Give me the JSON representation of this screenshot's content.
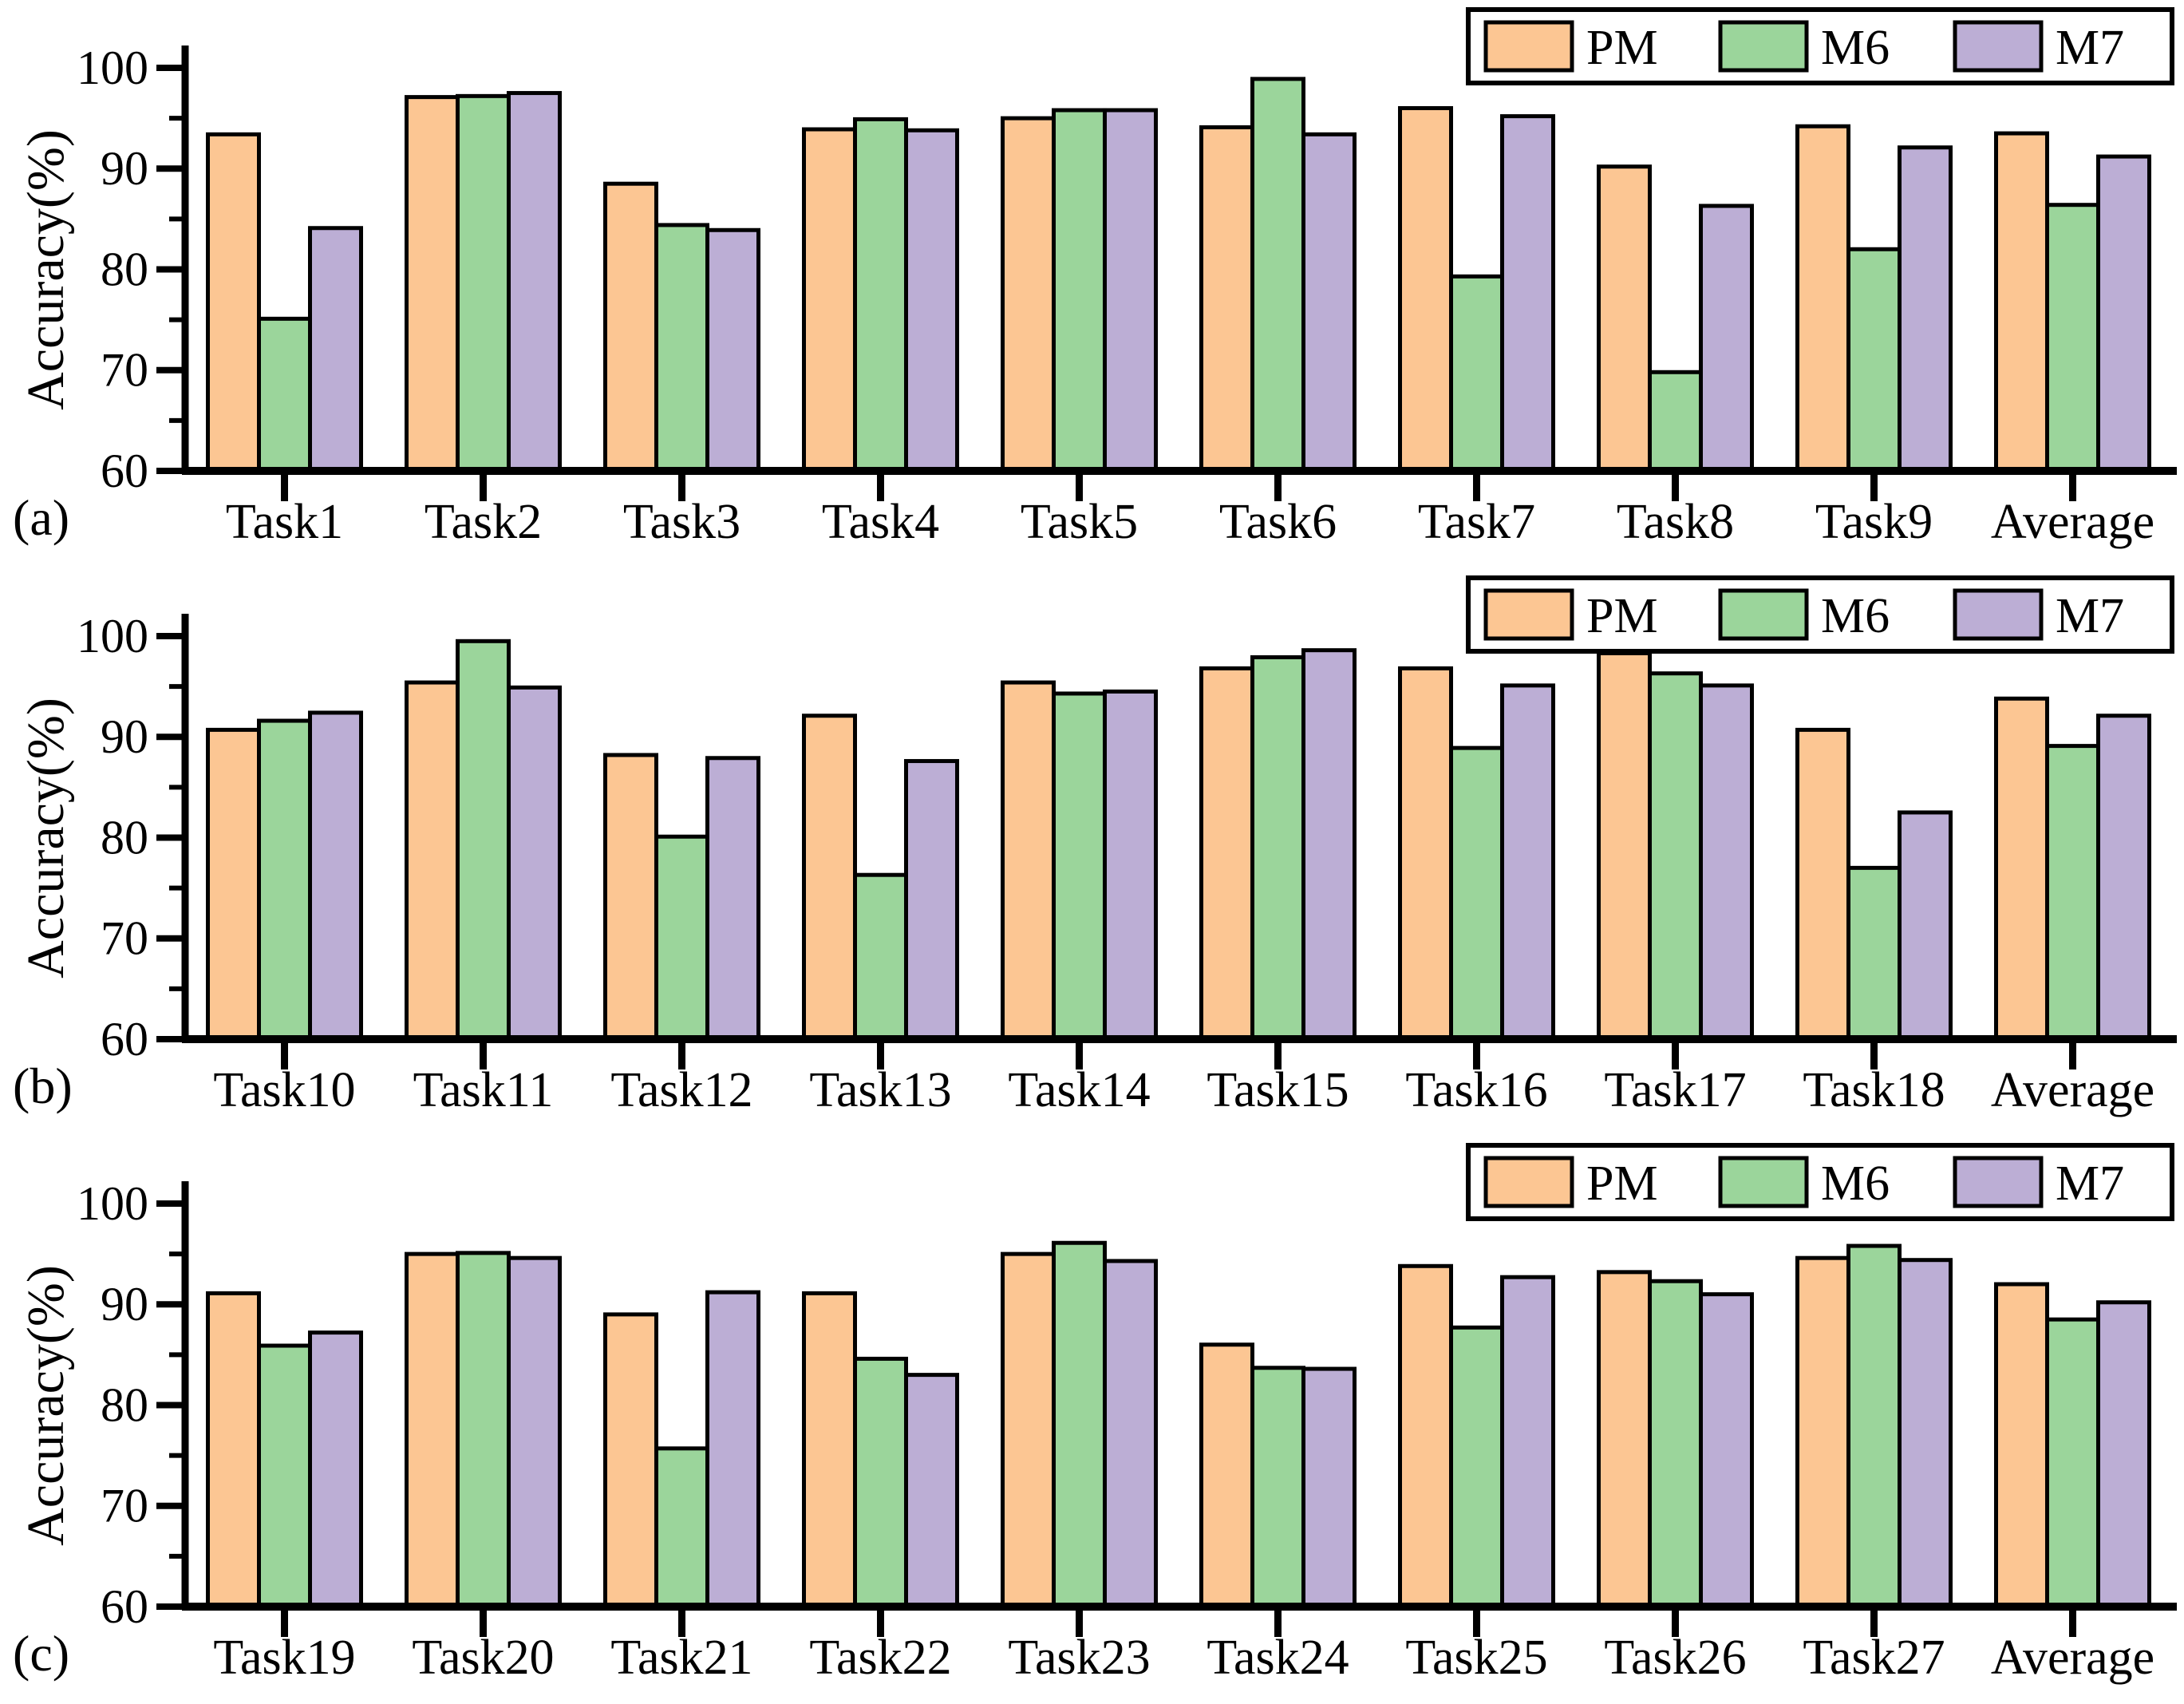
{
  "figure": {
    "background": "#ffffff",
    "edge_color": "#000000",
    "font_note": "serif axis figure",
    "legend_labels": [
      "PM",
      "M6",
      "M7"
    ],
    "series_colors": {
      "PM": "#FCC693",
      "M6": "#9BD59B",
      "M7": "#BCAED5"
    }
  },
  "chart_data": [
    {
      "type": "bar",
      "panel_label": "(a)",
      "ylabel": "Accuracy(%)",
      "ylim": [
        60,
        100
      ],
      "yticks": [
        60,
        70,
        80,
        90,
        100
      ],
      "minor_yticks": [
        65,
        75,
        85,
        95
      ],
      "grid": false,
      "legend_position": "top-right",
      "categories": [
        "Task1",
        "Task2",
        "Task3",
        "Task4",
        "Task5",
        "Task6",
        "Task7",
        "Task8",
        "Task9",
        "Average"
      ],
      "series": [
        {
          "name": "PM",
          "color": "#FCC693",
          "values": [
            93.4,
            97.1,
            88.5,
            93.9,
            95.0,
            94.1,
            96.0,
            90.2,
            94.2,
            93.5
          ]
        },
        {
          "name": "M6",
          "color": "#9BD59B",
          "values": [
            75.1,
            97.2,
            84.4,
            94.9,
            95.8,
            98.9,
            79.3,
            69.8,
            82.0,
            86.4
          ]
        },
        {
          "name": "M7",
          "color": "#BCAED5",
          "values": [
            84.1,
            97.5,
            83.9,
            93.8,
            95.8,
            93.4,
            95.2,
            86.3,
            92.1,
            91.2
          ]
        }
      ]
    },
    {
      "type": "bar",
      "panel_label": "(b)",
      "ylabel": "Accuracy(%)",
      "ylim": [
        60,
        100
      ],
      "yticks": [
        60,
        70,
        80,
        90,
        100
      ],
      "minor_yticks": [
        65,
        75,
        85,
        95
      ],
      "grid": false,
      "legend_position": "top-right",
      "categories": [
        "Task10",
        "Task11",
        "Task12",
        "Task13",
        "Task14",
        "Task15",
        "Task16",
        "Task17",
        "Task18",
        "Average"
      ],
      "series": [
        {
          "name": "PM",
          "color": "#FCC693",
          "values": [
            90.7,
            95.4,
            88.2,
            92.1,
            95.4,
            96.8,
            96.8,
            98.3,
            90.7,
            93.8
          ]
        },
        {
          "name": "M6",
          "color": "#9BD59B",
          "values": [
            91.6,
            99.5,
            80.1,
            76.3,
            94.3,
            97.9,
            88.9,
            96.3,
            77.0,
            89.1
          ]
        },
        {
          "name": "M7",
          "color": "#BCAED5",
          "values": [
            92.4,
            94.9,
            87.9,
            87.6,
            94.5,
            98.6,
            95.1,
            95.1,
            82.5,
            92.1
          ]
        }
      ]
    },
    {
      "type": "bar",
      "panel_label": "(c)",
      "ylabel": "Accuracy(%)",
      "ylim": [
        60,
        100
      ],
      "yticks": [
        60,
        70,
        80,
        90,
        100
      ],
      "minor_yticks": [
        65,
        75,
        85,
        95
      ],
      "grid": false,
      "legend_position": "top-right",
      "categories": [
        "Task19",
        "Task20",
        "Task21",
        "Task22",
        "Task23",
        "Task24",
        "Task25",
        "Task26",
        "Task27",
        "Average"
      ],
      "series": [
        {
          "name": "PM",
          "color": "#FCC693",
          "values": [
            91.1,
            95.0,
            89.0,
            91.1,
            95.0,
            86.0,
            93.8,
            93.2,
            94.6,
            92.0
          ]
        },
        {
          "name": "M6",
          "color": "#9BD59B",
          "values": [
            85.9,
            95.1,
            75.7,
            84.6,
            96.1,
            83.7,
            87.7,
            92.3,
            95.8,
            88.5
          ]
        },
        {
          "name": "M7",
          "color": "#BCAED5",
          "values": [
            87.2,
            94.6,
            91.2,
            83.0,
            94.3,
            83.6,
            92.7,
            91.0,
            94.4,
            90.2
          ]
        }
      ]
    }
  ]
}
